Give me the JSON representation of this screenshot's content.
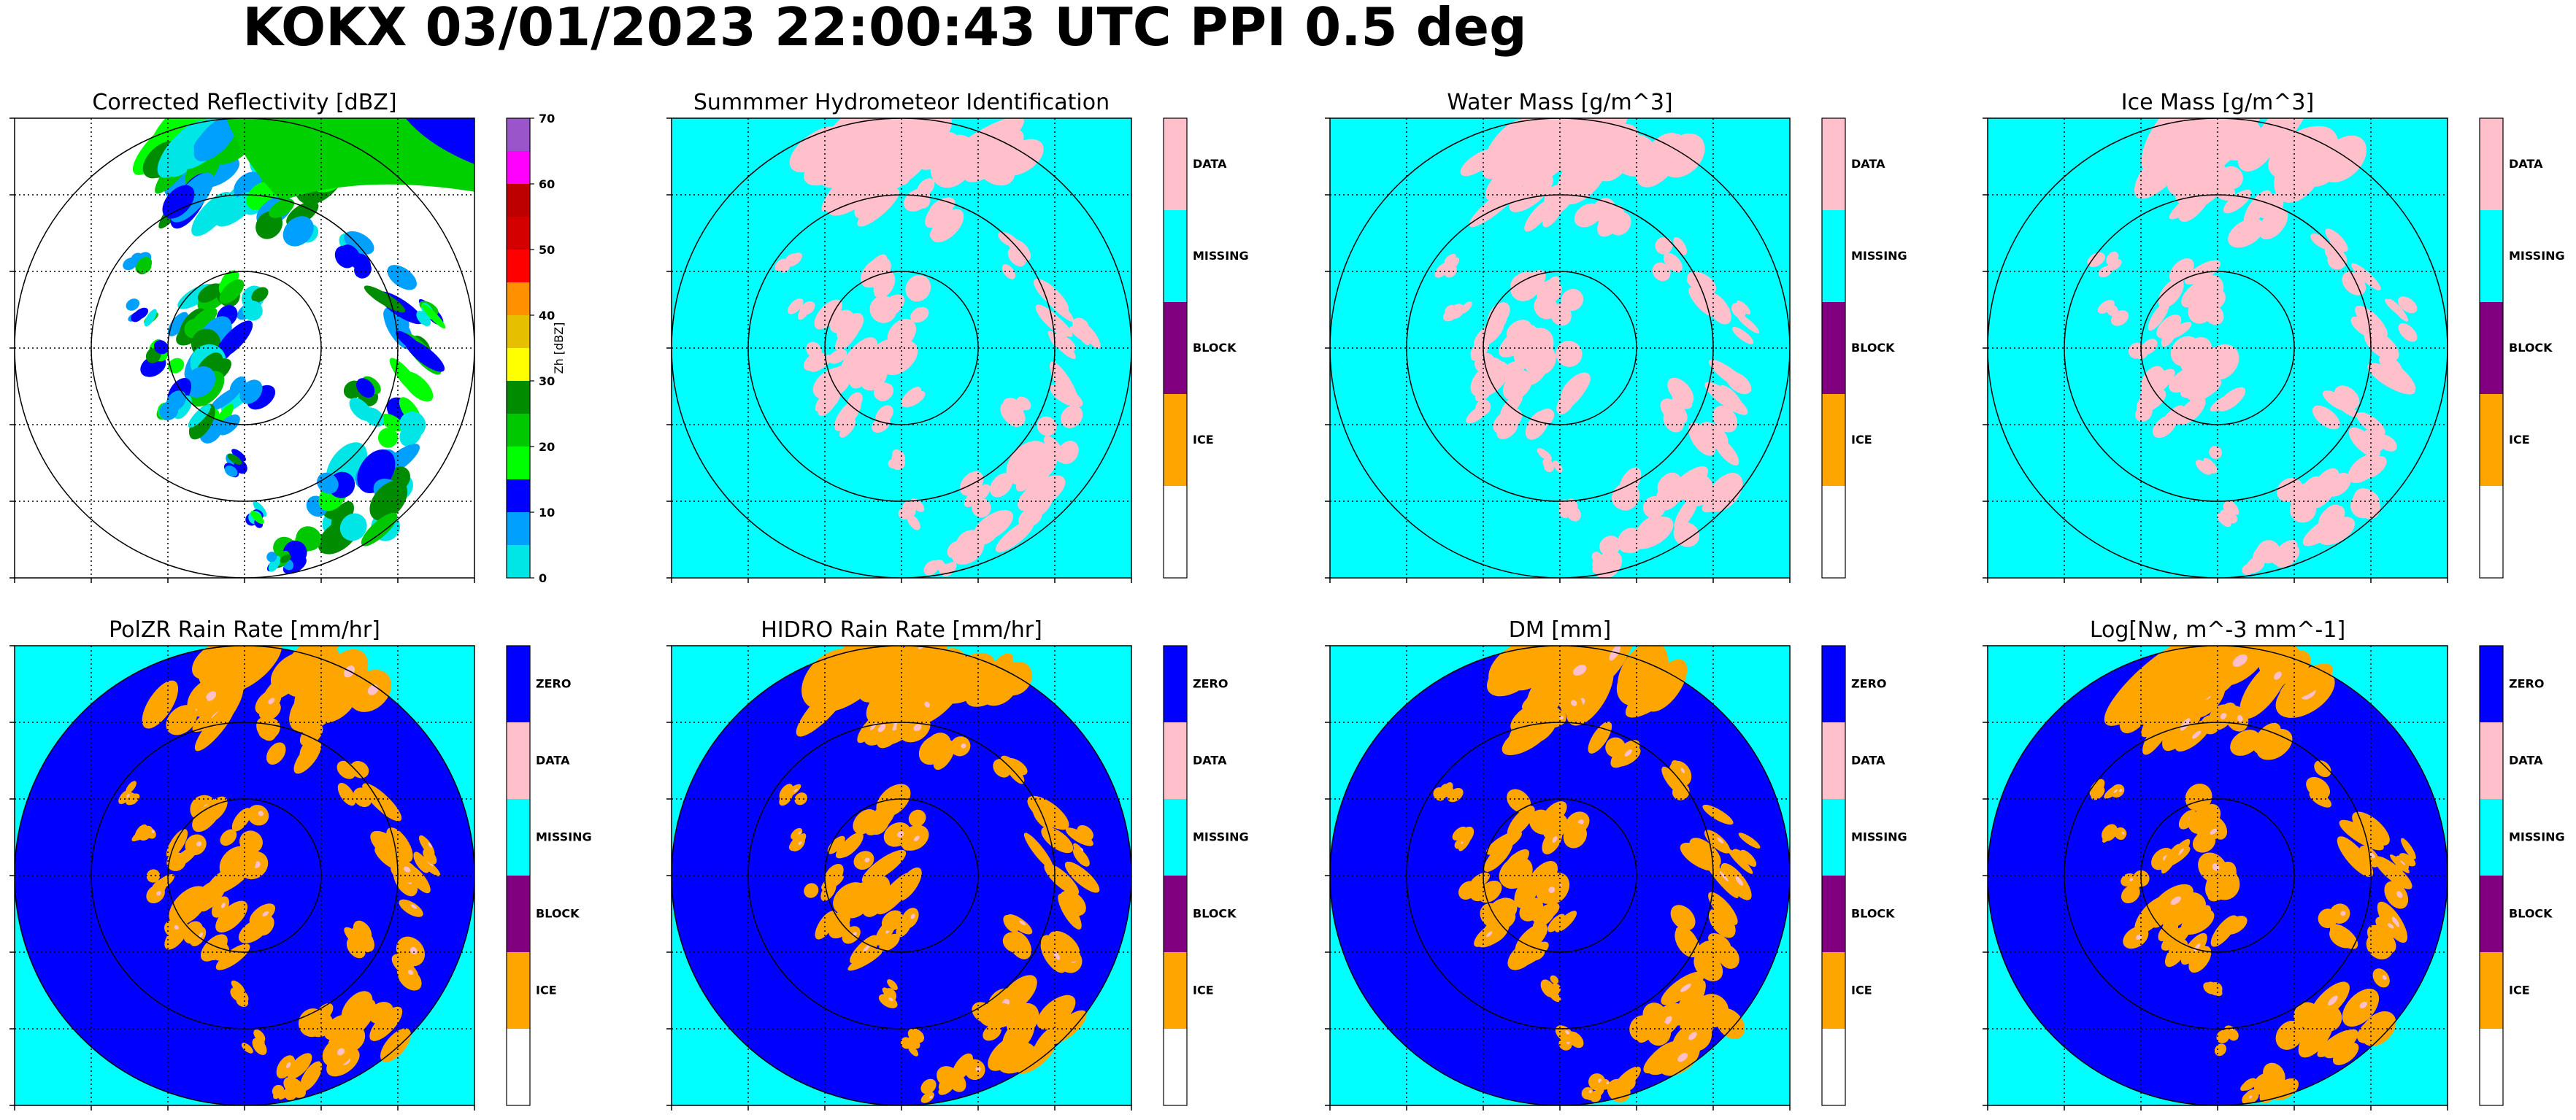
{
  "figure_title": "KOKX 03/01/2023 22:00:43 UTC PPI 0.5 deg",
  "colors": {
    "cyan": "#00ffff",
    "pink": "#ffc0cb",
    "purple": "#800080",
    "orange": "#ffa500",
    "blue": "#0000ff",
    "white": "#ffffff"
  },
  "chart_data": [
    {
      "type": "heatmap",
      "title": "Corrected Reflectivity [dBZ]",
      "colorbar_label": "Zh [dBZ]",
      "colorbar_ticks": [
        "0",
        "10",
        "20",
        "30",
        "40",
        "50",
        "60",
        "70"
      ],
      "colorbar_colors": [
        "#00e6e6",
        "#00a0ff",
        "#0000ff",
        "#00ff00",
        "#00c800",
        "#008c00",
        "#ffff00",
        "#e6c000",
        "#ff9000",
        "#ff0000",
        "#d40000",
        "#bc0000",
        "#ff00ff",
        "#9955c9"
      ],
      "range_rings": 3,
      "grid": true,
      "background": "#ffffff"
    },
    {
      "type": "heatmap",
      "title": "Summmer Hydrometeor Identification",
      "categories": [
        "DATA",
        "MISSING",
        "BLOCK",
        "ICE"
      ],
      "category_colors": [
        "#ffc0cb",
        "#00ffff",
        "#800080",
        "#ffa500"
      ],
      "range_rings": 3,
      "grid": true,
      "background": "#00ffff"
    },
    {
      "type": "heatmap",
      "title": "Water Mass [g/m^3]",
      "categories": [
        "DATA",
        "MISSING",
        "BLOCK",
        "ICE"
      ],
      "category_colors": [
        "#ffc0cb",
        "#00ffff",
        "#800080",
        "#ffa500"
      ],
      "range_rings": 3,
      "grid": true,
      "background": "#00ffff"
    },
    {
      "type": "heatmap",
      "title": "Ice Mass [g/m^3]",
      "categories": [
        "DATA",
        "MISSING",
        "BLOCK",
        "ICE"
      ],
      "category_colors": [
        "#ffc0cb",
        "#00ffff",
        "#800080",
        "#ffa500"
      ],
      "range_rings": 3,
      "grid": true,
      "background": "#00ffff"
    },
    {
      "type": "heatmap",
      "title": "PolZR Rain Rate [mm/hr]",
      "categories": [
        "ZERO",
        "DATA",
        "MISSING",
        "BLOCK",
        "ICE"
      ],
      "category_colors": [
        "#0000ff",
        "#ffc0cb",
        "#00ffff",
        "#800080",
        "#ffa500"
      ],
      "range_rings": 3,
      "grid": true,
      "background": "#00ffff"
    },
    {
      "type": "heatmap",
      "title": "HIDRO Rain Rate [mm/hr]",
      "categories": [
        "ZERO",
        "DATA",
        "MISSING",
        "BLOCK",
        "ICE"
      ],
      "category_colors": [
        "#0000ff",
        "#ffc0cb",
        "#00ffff",
        "#800080",
        "#ffa500"
      ],
      "range_rings": 3,
      "grid": true,
      "background": "#00ffff"
    },
    {
      "type": "heatmap",
      "title": "DM [mm]",
      "categories": [
        "ZERO",
        "DATA",
        "MISSING",
        "BLOCK",
        "ICE"
      ],
      "category_colors": [
        "#0000ff",
        "#ffc0cb",
        "#00ffff",
        "#800080",
        "#ffa500"
      ],
      "range_rings": 3,
      "grid": true,
      "background": "#00ffff"
    },
    {
      "type": "heatmap",
      "title": "Log[Nw, m^-3 mm^-1]",
      "categories": [
        "ZERO",
        "DATA",
        "MISSING",
        "BLOCK",
        "ICE"
      ],
      "category_colors": [
        "#0000ff",
        "#ffc0cb",
        "#00ffff",
        "#800080",
        "#ffa500"
      ],
      "range_rings": 3,
      "grid": true,
      "background": "#00ffff"
    }
  ]
}
